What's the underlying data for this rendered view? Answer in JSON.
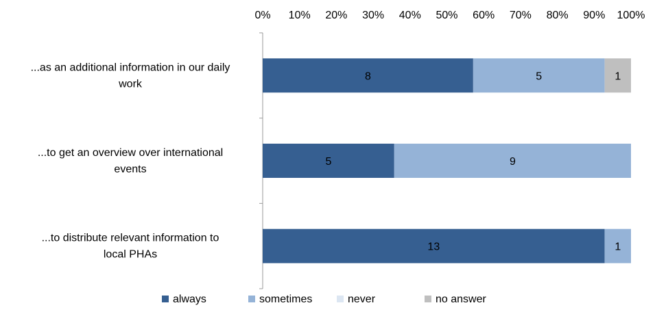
{
  "chart_data": {
    "type": "bar",
    "orientation": "horizontal",
    "stacked": "percent",
    "categories": [
      "...as an additional information in our daily work",
      "...to get an overview over international events",
      "...to distribute relevant information to local PHAs"
    ],
    "category_lines": [
      [
        "...as an additional information in our daily",
        "work"
      ],
      [
        "...to get an overview over international",
        "events"
      ],
      [
        "...to distribute relevant information to",
        "local PHAs"
      ]
    ],
    "series": [
      {
        "name": "always",
        "color": "#365f91",
        "values": [
          8,
          5,
          13
        ]
      },
      {
        "name": "sometimes",
        "color": "#95b3d7",
        "values": [
          5,
          9,
          1
        ]
      },
      {
        "name": "never",
        "color": "#dce6f2",
        "values": [
          0,
          0,
          0
        ]
      },
      {
        "name": "no answer",
        "color": "#bfbfbf",
        "values": [
          1,
          0,
          0
        ]
      }
    ],
    "x_ticks": [
      "0%",
      "10%",
      "20%",
      "30%",
      "40%",
      "50%",
      "60%",
      "70%",
      "80%",
      "90%",
      "100%"
    ],
    "xlim": [
      0,
      100
    ],
    "xaxis_position": "top",
    "grid": false,
    "legend_position": "bottom",
    "title": "",
    "xlabel": "",
    "ylabel": ""
  }
}
